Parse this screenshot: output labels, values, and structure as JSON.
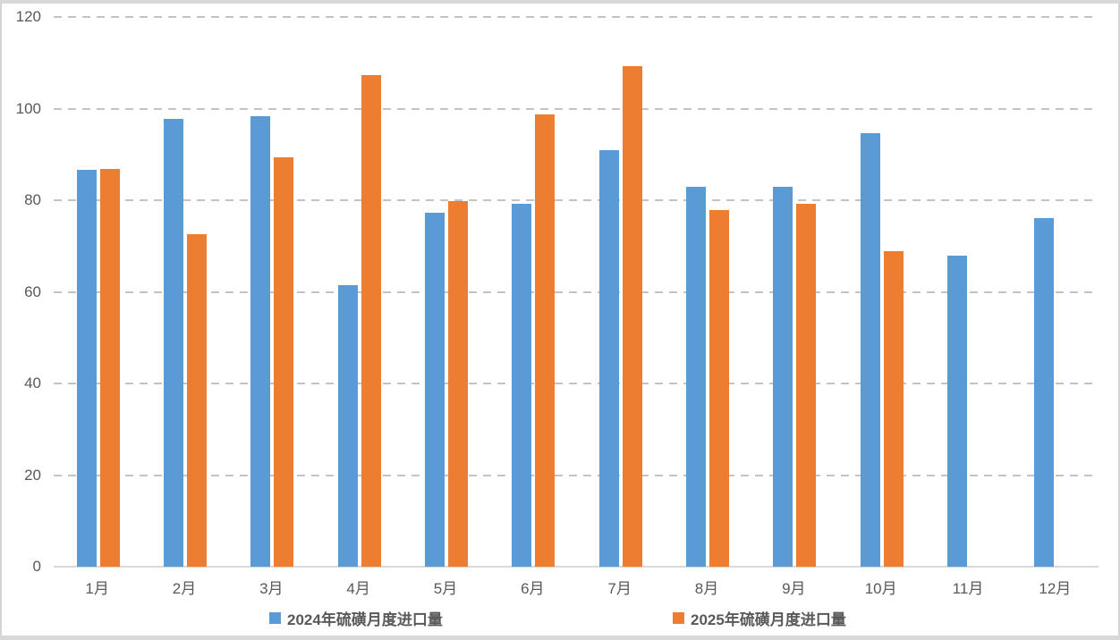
{
  "chart_data": {
    "type": "bar",
    "title": "",
    "xlabel": "",
    "ylabel": "",
    "categories": [
      "1月",
      "2月",
      "3月",
      "4月",
      "5月",
      "6月",
      "7月",
      "8月",
      "9月",
      "10月",
      "11月",
      "12月"
    ],
    "series": [
      {
        "name": "2024年硫磺月度进口量",
        "color": "#5B9BD5",
        "values": [
          86.7,
          97.8,
          98.3,
          61.5,
          77.2,
          79.2,
          90.9,
          83.0,
          83.0,
          94.6,
          67.9,
          76.1
        ]
      },
      {
        "name": "2025年硫磺月度进口量",
        "color": "#ED7D31",
        "values": [
          86.9,
          72.6,
          89.4,
          107.4,
          79.9,
          98.8,
          109.3,
          77.9,
          79.2,
          68.9,
          null,
          null
        ]
      }
    ],
    "ylim": [
      0,
      120
    ],
    "yticks": [
      0,
      20,
      40,
      60,
      80,
      100,
      120
    ],
    "grid": "horizontal-dashed",
    "legend_position": "bottom",
    "colors": {
      "axis_label": "#595959",
      "legend_text": "#595959",
      "gridline": "#c3c3c3",
      "baseline": "#d9d9d9",
      "frame": "#d8d8d8",
      "background": "#ffffff"
    }
  }
}
